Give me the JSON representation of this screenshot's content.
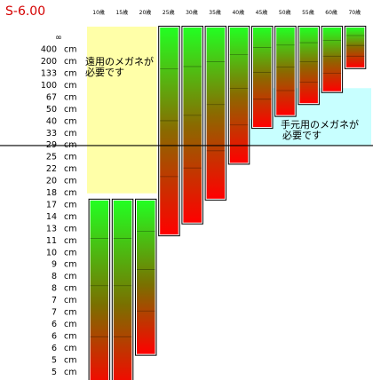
{
  "chart_data": {
    "type": "bar",
    "title": "S-6.00",
    "categories": [
      "10歳",
      "15歳",
      "20歳",
      "25歳",
      "30歳",
      "35歳",
      "40歳",
      "45歳",
      "50歳",
      "55歳",
      "60歳",
      "70歳"
    ],
    "y_ticks": [
      "∞",
      "400 cm",
      "200 cm",
      "133 cm",
      "100 cm",
      "67 cm",
      "50 cm",
      "40 cm",
      "33 cm",
      "29 cm",
      "25 cm",
      "22 cm",
      "20 cm",
      "18 cm",
      "17 cm",
      "14 cm",
      "13 cm",
      "11 cm",
      "10 cm",
      "9 cm",
      "8 cm",
      "8 cm",
      "7 cm",
      "7 cm",
      "6 cm",
      "6 cm",
      "6 cm",
      "5 cm",
      "5 cm",
      "5 cm"
    ],
    "note_far": [
      "遠用のメガネが",
      "必要です"
    ],
    "note_near": [
      "手元用のメガネが",
      "必要です"
    ],
    "colors": {
      "top": "#22ff22",
      "bottom": "#ff0000",
      "far_zone": "#ffffa8",
      "near_zone": "#c8ffff",
      "title": "#d40000"
    },
    "series": [
      {
        "values": [
          {
            "top": "17 cm",
            "bottom": "5 cm"
          },
          {
            "top": "17 cm",
            "bottom": "5 cm"
          },
          {
            "top": "17 cm",
            "bottom": "6 cm"
          },
          {
            "top": "∞",
            "bottom": "13 cm"
          },
          {
            "top": "∞",
            "bottom": "14 cm"
          },
          {
            "top": "∞",
            "bottom": "18 cm"
          },
          {
            "top": "∞",
            "bottom": "25 cm"
          },
          {
            "top": "∞",
            "bottom": "40 cm"
          },
          {
            "top": "∞",
            "bottom": "50 cm"
          },
          {
            "top": "∞",
            "bottom": "67 cm"
          },
          {
            "top": "∞",
            "bottom": "100 cm"
          },
          {
            "top": "∞",
            "bottom": "200 cm"
          }
        ]
      }
    ]
  }
}
